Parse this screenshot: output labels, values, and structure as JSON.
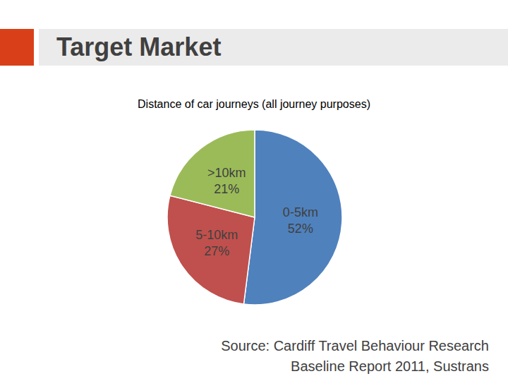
{
  "header": {
    "title": "Target Market"
  },
  "chart_data": {
    "type": "pie",
    "title": "Distance of car journeys (all journey purposes)",
    "categories": [
      "0-5km",
      "5-10km",
      ">10km"
    ],
    "values": [
      52,
      27,
      21
    ],
    "value_labels": [
      "52%",
      "27%",
      "21%"
    ],
    "colors": [
      "#4f81bd",
      "#c0504d",
      "#9bbb59"
    ],
    "data_labels": true,
    "annotations": [
      "Source: Cardiff Travel Behaviour Research",
      "Baseline Report 2011, Sustrans"
    ]
  }
}
